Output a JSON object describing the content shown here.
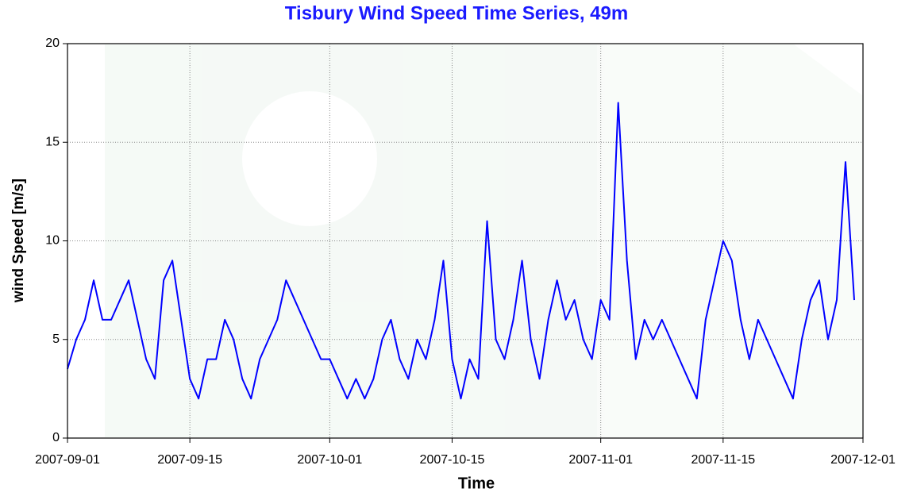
{
  "chart_data": {
    "type": "line",
    "title": "Tisbury Wind Speed Time Series, 49m",
    "xlabel": "Time",
    "ylabel": "wind Speed [m/s]",
    "x": [
      "2007-09-01",
      "2007-09-02",
      "2007-09-03",
      "2007-09-04",
      "2007-09-05",
      "2007-09-06",
      "2007-09-07",
      "2007-09-08",
      "2007-09-09",
      "2007-09-10",
      "2007-09-11",
      "2007-09-12",
      "2007-09-13",
      "2007-09-14",
      "2007-09-15",
      "2007-09-16",
      "2007-09-17",
      "2007-09-18",
      "2007-09-19",
      "2007-09-20",
      "2007-09-21",
      "2007-09-22",
      "2007-09-23",
      "2007-09-24",
      "2007-09-25",
      "2007-09-26",
      "2007-09-27",
      "2007-09-28",
      "2007-09-29",
      "2007-09-30",
      "2007-10-01",
      "2007-10-02",
      "2007-10-03",
      "2007-10-04",
      "2007-10-05",
      "2007-10-06",
      "2007-10-07",
      "2007-10-08",
      "2007-10-09",
      "2007-10-10",
      "2007-10-11",
      "2007-10-12",
      "2007-10-13",
      "2007-10-14",
      "2007-10-15",
      "2007-10-16",
      "2007-10-17",
      "2007-10-18",
      "2007-10-19",
      "2007-10-20",
      "2007-10-21",
      "2007-10-22",
      "2007-10-23",
      "2007-10-24",
      "2007-10-25",
      "2007-10-26",
      "2007-10-27",
      "2007-10-28",
      "2007-10-29",
      "2007-10-30",
      "2007-10-31",
      "2007-11-01",
      "2007-11-02",
      "2007-11-03",
      "2007-11-04",
      "2007-11-05",
      "2007-11-06",
      "2007-11-07",
      "2007-11-08",
      "2007-11-09",
      "2007-11-10",
      "2007-11-11",
      "2007-11-12",
      "2007-11-13",
      "2007-11-14",
      "2007-11-15",
      "2007-11-16",
      "2007-11-17",
      "2007-11-18",
      "2007-11-19",
      "2007-11-20",
      "2007-11-21",
      "2007-11-22",
      "2007-11-23",
      "2007-11-24",
      "2007-11-25",
      "2007-11-26",
      "2007-11-27",
      "2007-11-28",
      "2007-11-29",
      "2007-11-30"
    ],
    "series": [
      {
        "color": "#0000ff",
        "values": [
          3.5,
          5,
          6,
          8,
          6,
          6,
          7,
          8,
          6,
          4,
          3,
          8,
          9,
          6,
          3,
          2,
          4,
          4,
          6,
          5,
          3,
          2,
          4,
          5,
          6,
          8,
          7,
          6,
          5,
          4,
          4,
          3,
          2,
          3,
          2,
          3,
          5,
          6,
          4,
          3,
          5,
          4,
          6,
          9,
          4,
          2,
          4,
          3,
          11,
          5,
          4,
          6,
          9,
          5,
          3,
          6,
          8,
          6,
          7,
          5,
          4,
          7,
          6,
          17,
          9,
          4,
          6,
          5,
          6,
          5,
          4,
          3,
          2,
          6,
          8,
          10,
          9,
          6,
          4,
          6,
          5,
          4,
          3,
          2,
          5,
          7,
          8,
          5,
          7,
          14,
          7
        ]
      }
    ],
    "xlim": [
      "2007-09-01",
      "2007-12-01"
    ],
    "xticks": [
      "2007-09-01",
      "2007-09-15",
      "2007-10-01",
      "2007-10-15",
      "2007-11-01",
      "2007-11-15",
      "2007-12-01"
    ],
    "ylim": [
      0,
      20
    ],
    "yticks": [
      0,
      5,
      10,
      15,
      20
    ],
    "grid": true
  }
}
